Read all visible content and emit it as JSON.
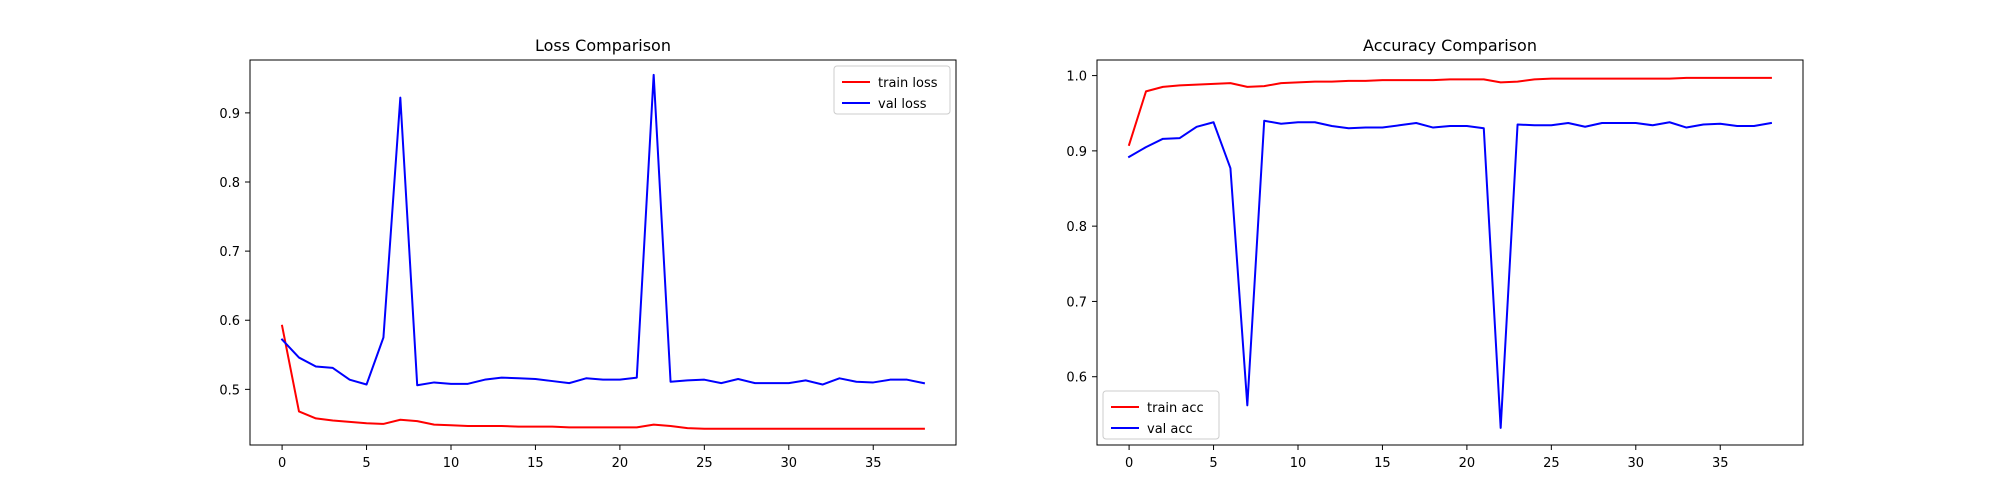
{
  "chart_data": [
    {
      "type": "line",
      "title": "Loss Comparison",
      "xlabel": "",
      "ylabel": "",
      "xlim": [
        -1.9,
        39.9
      ],
      "ylim": [
        0.4195,
        0.9765
      ],
      "xticks": [
        0,
        5,
        10,
        15,
        20,
        25,
        30,
        35
      ],
      "yticks": [
        0.5,
        0.6,
        0.7,
        0.8,
        0.9
      ],
      "ytick_format": 1,
      "legend": "upper right",
      "grid": false,
      "x": [
        0,
        1,
        2,
        3,
        4,
        5,
        6,
        7,
        8,
        9,
        10,
        11,
        12,
        13,
        14,
        15,
        16,
        17,
        18,
        19,
        20,
        21,
        22,
        23,
        24,
        25,
        26,
        27,
        28,
        29,
        30,
        31,
        32,
        33,
        34,
        35,
        36,
        37,
        38
      ],
      "series": [
        {
          "name": "train loss",
          "color": "#ff0000",
          "values": [
            0.592,
            0.468,
            0.458,
            0.455,
            0.453,
            0.451,
            0.45,
            0.456,
            0.454,
            0.449,
            0.448,
            0.447,
            0.447,
            0.447,
            0.446,
            0.446,
            0.446,
            0.445,
            0.445,
            0.445,
            0.445,
            0.445,
            0.449,
            0.447,
            0.444,
            0.443,
            0.443,
            0.443,
            0.443,
            0.443,
            0.443,
            0.443,
            0.443,
            0.443,
            0.443,
            0.443,
            0.443,
            0.443,
            0.443
          ]
        },
        {
          "name": "val loss",
          "color": "#0000ff",
          "values": [
            0.572,
            0.546,
            0.533,
            0.531,
            0.514,
            0.507,
            0.575,
            0.922,
            0.506,
            0.51,
            0.508,
            0.508,
            0.514,
            0.517,
            0.516,
            0.515,
            0.512,
            0.509,
            0.516,
            0.514,
            0.514,
            0.517,
            0.955,
            0.511,
            0.513,
            0.514,
            0.509,
            0.515,
            0.509,
            0.509,
            0.509,
            0.513,
            0.507,
            0.516,
            0.511,
            0.51,
            0.514,
            0.514,
            0.509
          ]
        }
      ]
    },
    {
      "type": "line",
      "title": "Accuracy Comparison",
      "xlabel": "",
      "ylabel": "",
      "xlim": [
        -1.9,
        39.9
      ],
      "ylim": [
        0.5093,
        1.0207
      ],
      "xticks": [
        0,
        5,
        10,
        15,
        20,
        25,
        30,
        35
      ],
      "yticks": [
        0.6,
        0.7,
        0.8,
        0.9,
        1.0
      ],
      "ytick_format": 1,
      "legend": "lower left",
      "grid": false,
      "x": [
        0,
        1,
        2,
        3,
        4,
        5,
        6,
        7,
        8,
        9,
        10,
        11,
        12,
        13,
        14,
        15,
        16,
        17,
        18,
        19,
        20,
        21,
        22,
        23,
        24,
        25,
        26,
        27,
        28,
        29,
        30,
        31,
        32,
        33,
        34,
        35,
        36,
        37,
        38
      ],
      "series": [
        {
          "name": "train acc",
          "color": "#ff0000",
          "values": [
            0.908,
            0.979,
            0.985,
            0.987,
            0.988,
            0.989,
            0.99,
            0.985,
            0.986,
            0.99,
            0.991,
            0.992,
            0.992,
            0.993,
            0.993,
            0.994,
            0.994,
            0.994,
            0.994,
            0.995,
            0.995,
            0.995,
            0.991,
            0.992,
            0.995,
            0.996,
            0.996,
            0.996,
            0.996,
            0.996,
            0.996,
            0.996,
            0.996,
            0.997,
            0.997,
            0.997,
            0.997,
            0.997,
            0.997
          ]
        },
        {
          "name": "val acc",
          "color": "#0000ff",
          "values": [
            0.892,
            0.905,
            0.916,
            0.917,
            0.932,
            0.938,
            0.877,
            0.562,
            0.94,
            0.936,
            0.938,
            0.938,
            0.933,
            0.93,
            0.931,
            0.931,
            0.934,
            0.937,
            0.931,
            0.933,
            0.933,
            0.93,
            0.532,
            0.935,
            0.934,
            0.934,
            0.937,
            0.932,
            0.937,
            0.937,
            0.937,
            0.934,
            0.938,
            0.931,
            0.935,
            0.936,
            0.933,
            0.933,
            0.937
          ]
        }
      ]
    }
  ]
}
